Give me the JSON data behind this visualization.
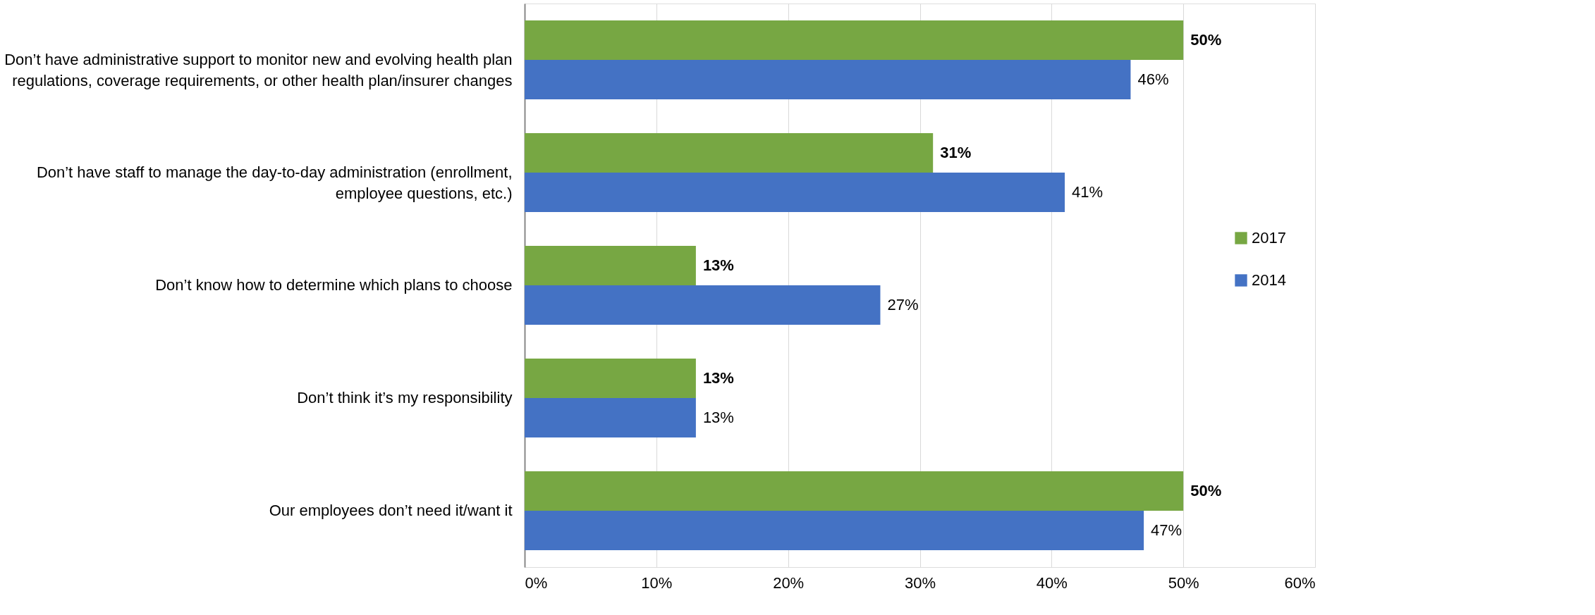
{
  "chart_data": {
    "type": "bar",
    "orientation": "horizontal",
    "categories": [
      "Don’t have administrative support to monitor new and evolving health plan regulations, coverage requirements, or other health plan/insurer changes",
      "Don’t have staff to manage the day-to-day administration (enrollment, employee questions, etc.)",
      "Don’t know how to determine which plans to choose",
      "Don’t think it’s my responsibility",
      "Our employees don’t need it/want it"
    ],
    "series": [
      {
        "name": "2017",
        "color": "#77a743",
        "values": [
          50,
          31,
          13,
          13,
          50
        ],
        "value_labels": [
          "50%",
          "31%",
          "13%",
          "13%",
          "50%"
        ]
      },
      {
        "name": "2014",
        "color": "#4472c4",
        "values": [
          46,
          41,
          27,
          13,
          47
        ],
        "value_labels": [
          "46%",
          "41%",
          "27%",
          "13%",
          "47%"
        ]
      }
    ],
    "xlim": [
      0,
      60
    ],
    "xticks": [
      {
        "value": 0,
        "label": "0%"
      },
      {
        "value": 10,
        "label": "10%"
      },
      {
        "value": 20,
        "label": "20%"
      },
      {
        "value": 30,
        "label": "30%"
      },
      {
        "value": 40,
        "label": "40%"
      },
      {
        "value": 50,
        "label": "50%"
      },
      {
        "value": 60,
        "label": "60%"
      }
    ],
    "grid": "x",
    "legend": "right"
  }
}
